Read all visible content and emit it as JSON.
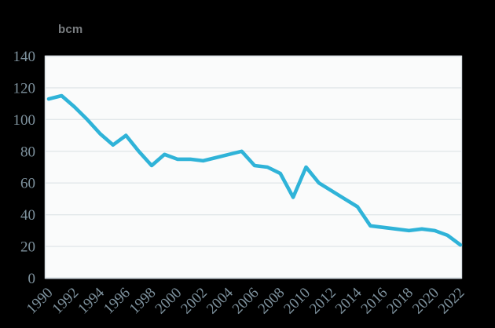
{
  "chart_data": {
    "type": "line",
    "title": "",
    "ylabel": "bcm",
    "xlabel": "",
    "x": [
      1990,
      1991,
      1992,
      1993,
      1994,
      1995,
      1996,
      1997,
      1998,
      1999,
      2000,
      2001,
      2002,
      2003,
      2004,
      2005,
      2006,
      2007,
      2008,
      2009,
      2010,
      2011,
      2012,
      2013,
      2014,
      2015,
      2016,
      2017,
      2018,
      2019,
      2020,
      2021,
      2022
    ],
    "values": [
      113,
      115,
      108,
      100,
      91,
      84,
      90,
      80,
      71,
      78,
      75,
      75,
      74,
      76,
      78,
      80,
      71,
      70,
      66,
      51,
      70,
      60,
      55,
      50,
      45,
      33,
      32,
      31,
      30,
      31,
      30,
      27,
      21
    ],
    "ylim": [
      0,
      140
    ],
    "yticks": [
      0,
      20,
      40,
      60,
      80,
      100,
      120,
      140
    ],
    "xticks": [
      1990,
      1992,
      1994,
      1996,
      1998,
      2000,
      2002,
      2004,
      2006,
      2008,
      2010,
      2012,
      2014,
      2016,
      2018,
      2020,
      2022
    ],
    "grid": "horizontal",
    "legend": "none",
    "colors": {
      "line": "#2fb3d8",
      "background": "#000000",
      "plot_background": "#fafbfb",
      "gridline": "#e2e7ea",
      "plot_border": "#d9e0e5",
      "axis_line": "#cdd6dc",
      "tick_label": "#7e929e",
      "unit_label": "#7a7e81"
    }
  }
}
